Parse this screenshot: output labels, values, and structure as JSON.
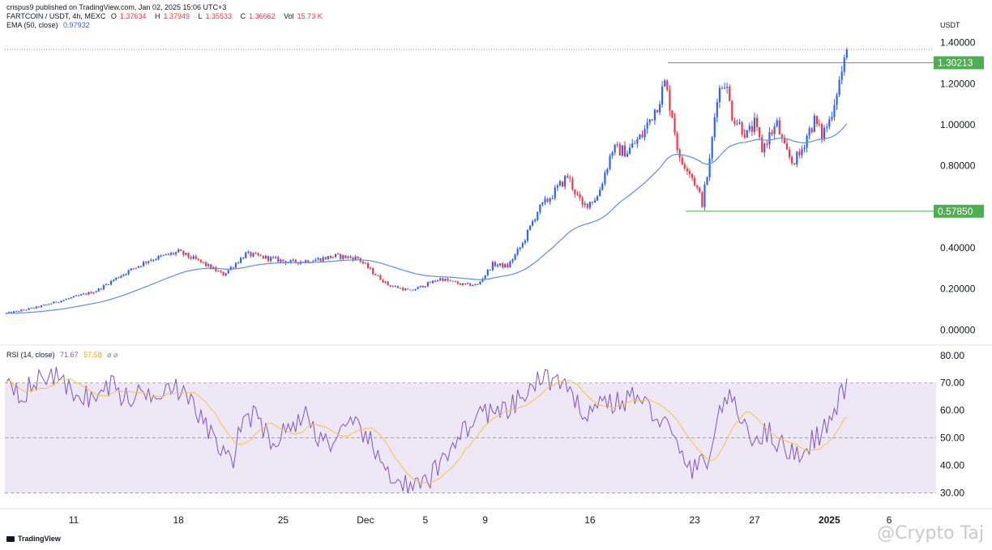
{
  "header": {
    "published_by": "crispus9 published on TradingView.com, Jan 02, 2025 15:06 UTC+3",
    "symbol": "FARTCOIN / USDT, 4h, MEXC",
    "ohlc": {
      "o_label": "O",
      "o": "1.37634",
      "h_label": "H",
      "h": "1.37949",
      "l_label": "L",
      "l": "1.35533",
      "c_label": "C",
      "c": "1.36662",
      "vol_label": "Vol",
      "vol": "15.73 K"
    },
    "ema_label": "EMA (50, close)",
    "ema_value": "0.97932",
    "rsi_label": "RSI (14, close)",
    "rsi_value": "71.67",
    "rsi_ma_value": "57.58",
    "rsi_extra": "⌀ ⌀"
  },
  "currency": "USDT",
  "badges": {
    "upper": "1.30213",
    "lower": "0.57850"
  },
  "footer": {
    "brand": "TradingView",
    "watermark": "@Crypto Taj"
  },
  "colors": {
    "up": "#2962ff",
    "down": "#f23645",
    "ema": "#5b8ee6",
    "rsi": "#7e57c2",
    "rsi_ma": "#f5c542",
    "level": "#4caf50",
    "rsi_band": "#ede7f6"
  },
  "chart_data": [
    {
      "type": "candlestick",
      "title": "FARTCOIN / USDT, 4h, MEXC",
      "ylabel": "USDT",
      "ylim": [
        -0.05,
        1.45
      ],
      "y_ticks": [
        "1.40000",
        "1.20000",
        "1.00000",
        "0.80000",
        "0.40000",
        "0.20000",
        "0.00000"
      ],
      "y_tick_values": [
        1.4,
        1.2,
        1.0,
        0.8,
        0.4,
        0.2,
        0.0
      ],
      "x_ticks": [
        "11",
        "18",
        "25",
        "Dec",
        "5",
        "9",
        "16",
        "23",
        "27",
        "2025",
        "6"
      ],
      "x_tick_days": [
        10.5,
        17.5,
        24.5,
        30,
        34,
        38,
        45,
        52,
        56,
        61,
        65
      ],
      "xlim_days": [
        5.9,
        67.7
      ],
      "price_anchors": [
        [
          6,
          0.08
        ],
        [
          8,
          0.11
        ],
        [
          10,
          0.15
        ],
        [
          12,
          0.19
        ],
        [
          13.5,
          0.26
        ],
        [
          15.5,
          0.34
        ],
        [
          17.5,
          0.38
        ],
        [
          19,
          0.33
        ],
        [
          20.5,
          0.27
        ],
        [
          22,
          0.37
        ],
        [
          23.5,
          0.35
        ],
        [
          25,
          0.33
        ],
        [
          26.5,
          0.34
        ],
        [
          28,
          0.36
        ],
        [
          29.5,
          0.35
        ],
        [
          30.5,
          0.28
        ],
        [
          31.5,
          0.22
        ],
        [
          33,
          0.19
        ],
        [
          34,
          0.22
        ],
        [
          35,
          0.25
        ],
        [
          36.5,
          0.22
        ],
        [
          37.5,
          0.22
        ],
        [
          38.5,
          0.32
        ],
        [
          39.5,
          0.31
        ],
        [
          40.5,
          0.42
        ],
        [
          41.5,
          0.58
        ],
        [
          42.5,
          0.66
        ],
        [
          43.5,
          0.75
        ],
        [
          44.5,
          0.6
        ],
        [
          45.5,
          0.65
        ],
        [
          46.5,
          0.88
        ],
        [
          47.5,
          0.87
        ],
        [
          48.5,
          0.95
        ],
        [
          49.5,
          1.1
        ],
        [
          50,
          1.2
        ],
        [
          50.5,
          1.05
        ],
        [
          51,
          0.82
        ],
        [
          51.5,
          0.8
        ],
        [
          52,
          0.72
        ],
        [
          52.5,
          0.62
        ],
        [
          53,
          0.82
        ],
        [
          53.5,
          1.15
        ],
        [
          54,
          1.22
        ],
        [
          54.5,
          1.05
        ],
        [
          55,
          1.0
        ],
        [
          55.5,
          0.95
        ],
        [
          56,
          1.0
        ],
        [
          56.5,
          0.88
        ],
        [
          57,
          0.95
        ],
        [
          57.5,
          1.0
        ],
        [
          58,
          0.88
        ],
        [
          58.5,
          0.82
        ],
        [
          59,
          0.85
        ],
        [
          59.5,
          0.95
        ],
        [
          60,
          1.02
        ],
        [
          60.5,
          0.95
        ],
        [
          61,
          1.02
        ],
        [
          61.5,
          1.17
        ],
        [
          62,
          1.3
        ],
        [
          62.3,
          1.37
        ]
      ],
      "last_price": 1.36662,
      "levels": [
        {
          "label": "1.30213",
          "value": 1.30213,
          "from_day": 50.2,
          "to_day": 67.7
        },
        {
          "label": "0.57850",
          "value": 0.5785,
          "from_day": 51.4,
          "to_day": 67.7
        }
      ],
      "ema": {
        "name": "EMA (50, close)",
        "period": 50
      },
      "grid": false
    },
    {
      "type": "line",
      "title": "RSI (14, close)",
      "ylim": [
        26,
        82
      ],
      "y_ticks": [
        "80.00",
        "70.00",
        "60.00",
        "50.00",
        "40.00",
        "30.00"
      ],
      "y_tick_values": [
        80,
        70,
        60,
        50,
        40,
        30
      ],
      "bands": [
        30,
        50,
        70
      ],
      "series": [
        {
          "name": "RSI (14, close)",
          "last": 71.67
        },
        {
          "name": "RSI-based MA",
          "last": 57.58
        }
      ],
      "rsi_anchors": [
        [
          6,
          73
        ],
        [
          7,
          66
        ],
        [
          8,
          70
        ],
        [
          9,
          74
        ],
        [
          10,
          68
        ],
        [
          11,
          66
        ],
        [
          12,
          64
        ],
        [
          13,
          70
        ],
        [
          14,
          64
        ],
        [
          15,
          66
        ],
        [
          16,
          67
        ],
        [
          17,
          70
        ],
        [
          18,
          64
        ],
        [
          19,
          58
        ],
        [
          20,
          48
        ],
        [
          21,
          40
        ],
        [
          22,
          60
        ],
        [
          23,
          55
        ],
        [
          24,
          48
        ],
        [
          25,
          55
        ],
        [
          26,
          58
        ],
        [
          27,
          50
        ],
        [
          28,
          48
        ],
        [
          29,
          54
        ],
        [
          30,
          52
        ],
        [
          31,
          40
        ],
        [
          32,
          36
        ],
        [
          33,
          31
        ],
        [
          34,
          33
        ],
        [
          35,
          40
        ],
        [
          36,
          50
        ],
        [
          37,
          55
        ],
        [
          38,
          60
        ],
        [
          39,
          58
        ],
        [
          40,
          62
        ],
        [
          41,
          68
        ],
        [
          42,
          72
        ],
        [
          43,
          70
        ],
        [
          44,
          62
        ],
        [
          45,
          60
        ],
        [
          46,
          64
        ],
        [
          47,
          62
        ],
        [
          48,
          66
        ],
        [
          49,
          60
        ],
        [
          50,
          56
        ],
        [
          51,
          44
        ],
        [
          52,
          38
        ],
        [
          53,
          44
        ],
        [
          54,
          66
        ],
        [
          55,
          58
        ],
        [
          56,
          50
        ],
        [
          57,
          52
        ],
        [
          58,
          46
        ],
        [
          59,
          44
        ],
        [
          60,
          50
        ],
        [
          61,
          55
        ],
        [
          62,
          68
        ],
        [
          62.3,
          71.67
        ]
      ]
    }
  ]
}
